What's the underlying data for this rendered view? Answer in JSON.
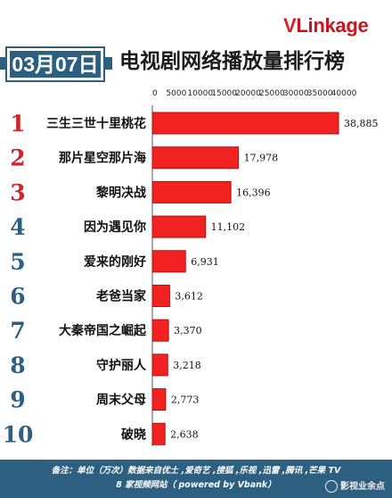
{
  "brand": {
    "logo_v": "V",
    "logo_rest": "Linkage"
  },
  "header": {
    "date": "03月07日",
    "title": "电视剧网络播放量排行榜"
  },
  "colors": {
    "bar": "#f22222",
    "bar_edge": "#b20f0f",
    "header_blue": "#2d5f80",
    "rank_red": "#d2232a",
    "rank_blue": "#2d5f80"
  },
  "chart_data": {
    "type": "bar",
    "orientation": "horizontal",
    "xlim": [
      0,
      40000
    ],
    "x_ticks": [
      "0",
      "5000",
      "10000",
      "15000",
      "20000",
      "25000",
      "30000",
      "35000",
      "40000"
    ],
    "ranks": [
      "1",
      "2",
      "3",
      "4",
      "5",
      "6",
      "7",
      "8",
      "9",
      "10"
    ],
    "categories": [
      "三生三世十里桃花",
      "那片星空那片海",
      "黎明决战",
      "因为遇见你",
      "爱来的刚好",
      "老爸当家",
      "大秦帝国之崛起",
      "守护丽人",
      "周末父母",
      "破晓"
    ],
    "values": [
      38885,
      17978,
      16396,
      11102,
      6931,
      3612,
      3370,
      3218,
      2773,
      2638
    ],
    "value_labels": [
      "38,885",
      "17,978",
      "16,396",
      "11,102",
      "6,931",
      "3,612",
      "3,370",
      "3,218",
      "2,773",
      "2,638"
    ]
  },
  "footer": {
    "line1": "备注：单位（万次）数据来自优土 ,爱奇艺 ,搜狐 ,乐视 ,迅雷 ,腾讯 ,芒果 TV",
    "line2": "8 家视频网站（ powered by Vbank）"
  },
  "watermark": {
    "text": "影视业余点"
  }
}
